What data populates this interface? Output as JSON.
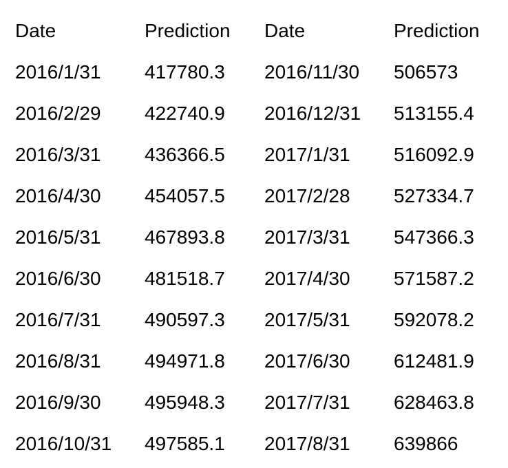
{
  "table": {
    "headers": [
      "Date",
      "Prediction",
      "Date",
      "Prediction"
    ],
    "rows": [
      [
        "2016/1/31",
        "417780.3",
        "2016/11/30",
        "506573"
      ],
      [
        "2016/2/29",
        "422740.9",
        "2016/12/31",
        "513155.4"
      ],
      [
        "2016/3/31",
        "436366.5",
        "2017/1/31",
        "516092.9"
      ],
      [
        "2016/4/30",
        "454057.5",
        "2017/2/28",
        "527334.7"
      ],
      [
        "2016/5/31",
        "467893.8",
        "2017/3/31",
        "547366.3"
      ],
      [
        "2016/6/30",
        "481518.7",
        "2017/4/30",
        "571587.2"
      ],
      [
        "2016/7/31",
        "490597.3",
        "2017/5/31",
        "592078.2"
      ],
      [
        "2016/8/31",
        "494971.8",
        "2017/6/30",
        "612481.9"
      ],
      [
        "2016/9/30",
        "495948.3",
        "2017/7/31",
        "628463.8"
      ],
      [
        "2016/10/31",
        "497585.1",
        "2017/8/31",
        "639866"
      ]
    ]
  }
}
